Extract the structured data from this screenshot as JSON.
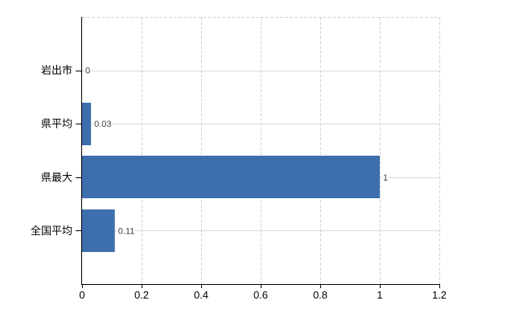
{
  "chart": {
    "background": "#ffffff",
    "bar_color": "#3d6eae",
    "axis_color": "#000000",
    "grid_horizontal_color": "#d6ddd0",
    "grid_vertical_color": "#d6d4d5",
    "category_label_color": "#000000",
    "tick_label_color": "#000000",
    "value_label_color": "#3f3f3f"
  },
  "chart_data": {
    "type": "bar",
    "orientation": "horizontal",
    "title": "",
    "xlabel": "",
    "ylabel": "",
    "categories": [
      "岩出市",
      "県平均",
      "県最大",
      "全国平均"
    ],
    "values": [
      0,
      0.03,
      1,
      0.11
    ],
    "data_labels": [
      "0",
      "0.03",
      "1",
      "0.11"
    ],
    "x_ticks": [
      0,
      0.2,
      0.4,
      0.6,
      0.8,
      1,
      1.2
    ],
    "x_tick_labels": [
      "0",
      "0.2",
      "0.4",
      "0.6",
      "0.8",
      "1",
      "1.2"
    ],
    "xlim": [
      0,
      1.2
    ],
    "grid": true,
    "legend": false
  }
}
